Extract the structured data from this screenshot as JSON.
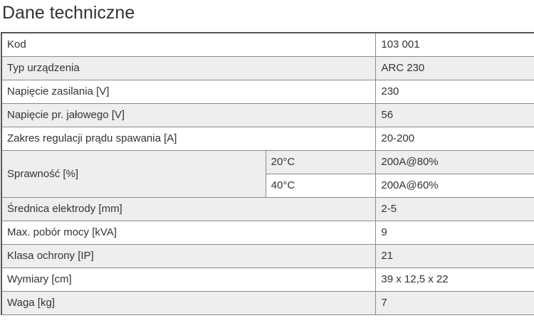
{
  "title": "Dane techniczne",
  "rows": [
    {
      "label": "Kod",
      "value": "103 001"
    },
    {
      "label": "Typ urządzenia",
      "value": "ARC 230"
    },
    {
      "label": "Napięcie zasilania [V]",
      "value": "230"
    },
    {
      "label": "Napięcie pr. jałowego [V]",
      "value": "56"
    },
    {
      "label": "Zakres regulacji prądu spawania [A]",
      "value": "20-200"
    },
    {
      "label": "Sprawność [%]",
      "sub": [
        {
          "temp": "20°C",
          "value": "200A@80%"
        },
        {
          "temp": "40°C",
          "value": "200A@60%"
        }
      ]
    },
    {
      "label": "Średnica elektrody [mm]",
      "value": "2-5"
    },
    {
      "label": "Max. pobór mocy [kVA]",
      "value": "9"
    },
    {
      "label": "Klasa ochrony [IP]",
      "value": "21"
    },
    {
      "label": "Wymiary [cm]",
      "value": "39 x 12,5 x 22"
    },
    {
      "label": "Waga [kg]",
      "value": "7"
    }
  ]
}
